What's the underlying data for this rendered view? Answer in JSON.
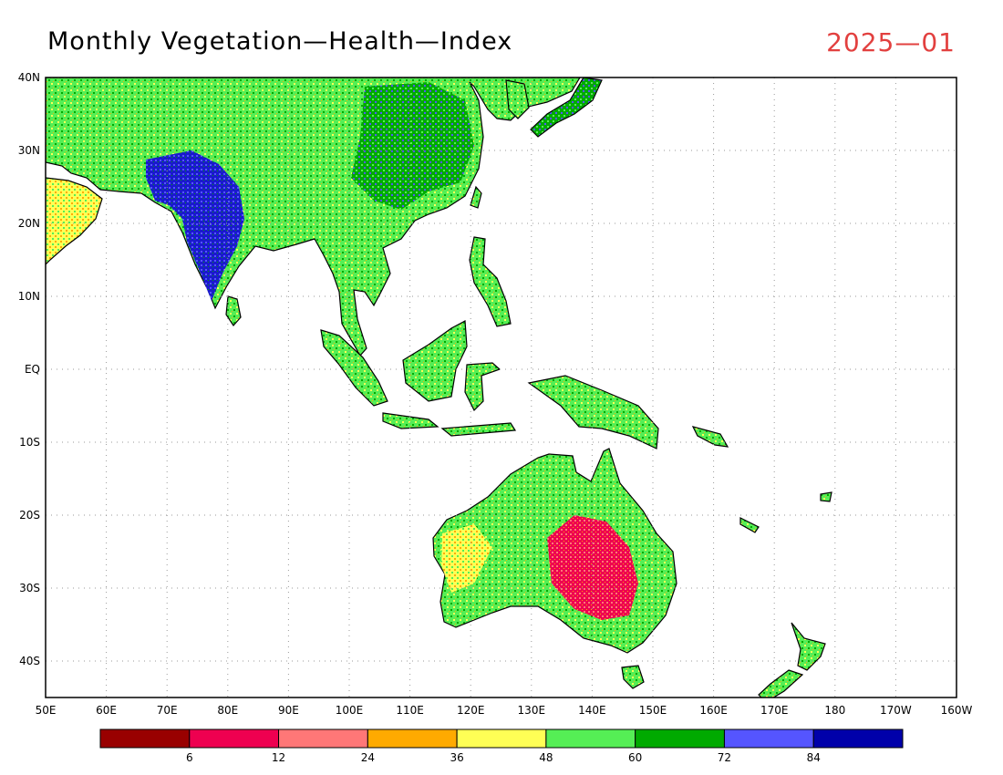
{
  "title": "Monthly Vegetation—Health—Index",
  "date": "2025—01",
  "lat_labels": [
    "40N",
    "30N",
    "20N",
    "10N",
    "EQ",
    "10S",
    "20S",
    "30S",
    "40S"
  ],
  "lon_labels": [
    "50E",
    "60E",
    "70E",
    "80E",
    "90E",
    "100E",
    "110E",
    "120E",
    "130E",
    "140E",
    "150E",
    "160E",
    "170E",
    "180",
    "170W",
    "160W"
  ],
  "legend": {
    "colors": [
      "#990000",
      "#ee0050",
      "#ff7777",
      "#ffaa00",
      "#ffff55",
      "#55ee55",
      "#00aa00",
      "#5555ff",
      "#0000aa"
    ],
    "tick_labels": [
      "6",
      "12",
      "24",
      "36",
      "48",
      "60",
      "72",
      "84"
    ]
  }
}
